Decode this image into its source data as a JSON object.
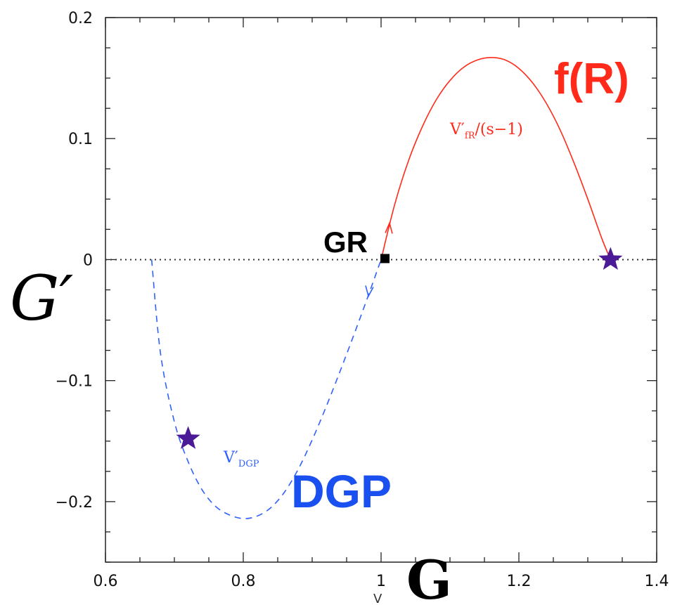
{
  "chart_data": {
    "type": "line",
    "xlabel": "G",
    "xlabel_sub": "V",
    "ylabel": "G′",
    "xlim": [
      0.6,
      1.4
    ],
    "ylim": [
      -0.25,
      0.2
    ],
    "x_ticks": [
      0.6,
      0.8,
      1.0,
      1.2,
      1.4
    ],
    "x_tick_labels": [
      "0.6",
      "0.8",
      "1",
      "1.2",
      "1.4"
    ],
    "y_ticks": [
      -0.2,
      -0.1,
      0.0,
      0.1,
      0.2
    ],
    "y_tick_labels": [
      "−0.2",
      "−0.1",
      "0",
      "0.1",
      "0.2"
    ],
    "reference_line": {
      "y": 0,
      "x_from": 0.6,
      "x_to": 1.4,
      "style": "dotted",
      "color": "#333333"
    },
    "series": [
      {
        "name": "f(R)",
        "curve_label": "V′_fR/(s−1)",
        "style": "solid",
        "color": "#ff2a1a",
        "x": [
          1.0,
          1.02,
          1.04,
          1.06,
          1.08,
          1.1,
          1.12,
          1.14,
          1.16,
          1.18,
          1.2,
          1.22,
          1.24,
          1.26,
          1.28,
          1.3,
          1.32,
          1.333
        ],
        "y": [
          0.0,
          0.046,
          0.082,
          0.11,
          0.132,
          0.148,
          0.159,
          0.165,
          0.167,
          0.165,
          0.158,
          0.146,
          0.129,
          0.107,
          0.08,
          0.05,
          0.018,
          0.0
        ]
      },
      {
        "name": "DGP",
        "curve_label": "V′_DGP",
        "style": "dashed",
        "color": "#3060ff",
        "x": [
          0.667,
          0.68,
          0.7,
          0.72,
          0.74,
          0.76,
          0.78,
          0.8,
          0.82,
          0.84,
          0.86,
          0.88,
          0.9,
          0.92,
          0.94,
          0.96,
          0.98,
          1.0
        ],
        "y": [
          0.0,
          -0.078,
          -0.134,
          -0.167,
          -0.19,
          -0.204,
          -0.211,
          -0.214,
          -0.212,
          -0.205,
          -0.192,
          -0.173,
          -0.149,
          -0.122,
          -0.093,
          -0.063,
          -0.032,
          0.0
        ]
      }
    ],
    "markers": [
      {
        "label": "GR",
        "x": 1.0,
        "y": 0.0,
        "shape": "square",
        "color": "#000000"
      },
      {
        "x": 1.333,
        "y": 0.0,
        "shape": "star",
        "color": "#4b1a96"
      },
      {
        "x": 0.72,
        "y": -0.148,
        "shape": "star",
        "color": "#4b1a96"
      }
    ],
    "annotations": {
      "fR_big": "f(R)",
      "fR_small_main": "V′",
      "fR_small_sub": "fR",
      "fR_small_tail": "/(s−1)",
      "dgp_big": "DGP",
      "dgp_small_main": "V′",
      "dgp_small_sub": "DGP",
      "gr": "GR"
    },
    "colors": {
      "fR": "#ff2a1a",
      "dgp": "#3060ff",
      "star": "#4b1a96",
      "dgp_big": "#1a4ff0"
    }
  }
}
